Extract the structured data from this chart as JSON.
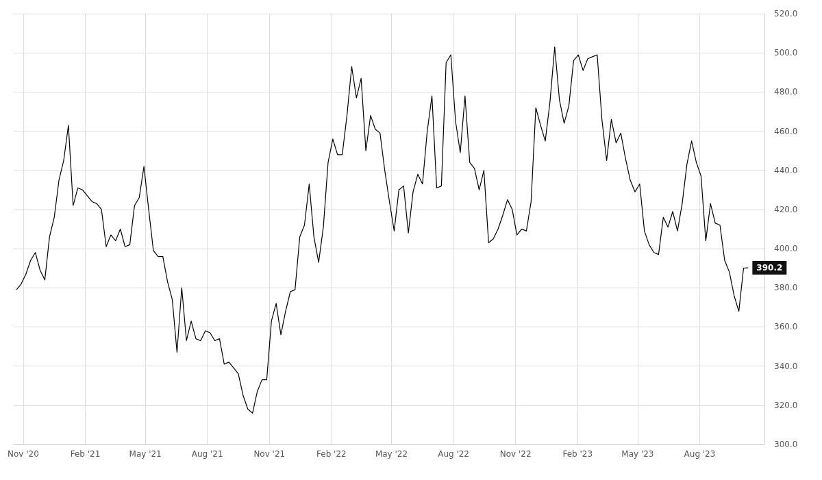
{
  "chart_data": {
    "type": "line",
    "x": [
      "2020-10-22",
      "2020-10-29",
      "2020-11-05",
      "2020-11-12",
      "2020-11-19",
      "2020-11-26",
      "2020-12-03",
      "2020-12-10",
      "2020-12-17",
      "2020-12-24",
      "2020-12-31",
      "2021-01-07",
      "2021-01-14",
      "2021-01-21",
      "2021-01-28",
      "2021-02-04",
      "2021-02-11",
      "2021-02-18",
      "2021-02-25",
      "2021-03-04",
      "2021-03-11",
      "2021-03-18",
      "2021-03-25",
      "2021-04-01",
      "2021-04-08",
      "2021-04-15",
      "2021-04-22",
      "2021-04-29",
      "2021-05-06",
      "2021-05-13",
      "2021-05-20",
      "2021-05-27",
      "2021-06-03",
      "2021-06-10",
      "2021-06-17",
      "2021-06-24",
      "2021-07-01",
      "2021-07-08",
      "2021-07-15",
      "2021-07-22",
      "2021-07-29",
      "2021-08-05",
      "2021-08-12",
      "2021-08-19",
      "2021-08-26",
      "2021-09-02",
      "2021-09-09",
      "2021-09-16",
      "2021-09-23",
      "2021-09-30",
      "2021-10-07",
      "2021-10-14",
      "2021-10-21",
      "2021-10-28",
      "2021-11-04",
      "2021-11-11",
      "2021-11-18",
      "2021-11-25",
      "2021-12-02",
      "2021-12-09",
      "2021-12-16",
      "2021-12-23",
      "2021-12-30",
      "2022-01-06",
      "2022-01-13",
      "2022-01-20",
      "2022-01-27",
      "2022-02-03",
      "2022-02-10",
      "2022-02-17",
      "2022-02-24",
      "2022-03-03",
      "2022-03-10",
      "2022-03-17",
      "2022-03-24",
      "2022-03-31",
      "2022-04-07",
      "2022-04-14",
      "2022-04-21",
      "2022-04-28",
      "2022-05-05",
      "2022-05-12",
      "2022-05-19",
      "2022-05-26",
      "2022-06-02",
      "2022-06-09",
      "2022-06-16",
      "2022-06-23",
      "2022-06-30",
      "2022-07-07",
      "2022-07-14",
      "2022-07-21",
      "2022-07-28",
      "2022-08-04",
      "2022-08-11",
      "2022-08-18",
      "2022-08-25",
      "2022-09-01",
      "2022-09-08",
      "2022-09-15",
      "2022-09-22",
      "2022-09-29",
      "2022-10-06",
      "2022-10-13",
      "2022-10-20",
      "2022-10-27",
      "2022-11-03",
      "2022-11-10",
      "2022-11-17",
      "2022-11-24",
      "2022-12-01",
      "2022-12-08",
      "2022-12-15",
      "2022-12-22",
      "2022-12-29",
      "2023-01-05",
      "2023-01-12",
      "2023-01-19",
      "2023-01-26",
      "2023-02-02",
      "2023-02-09",
      "2023-02-16",
      "2023-02-23",
      "2023-03-02",
      "2023-03-09",
      "2023-03-16",
      "2023-03-23",
      "2023-03-30",
      "2023-04-06",
      "2023-04-13",
      "2023-04-20",
      "2023-04-27",
      "2023-05-04",
      "2023-05-11",
      "2023-05-18",
      "2023-05-25",
      "2023-06-01",
      "2023-06-08",
      "2023-06-15",
      "2023-06-22",
      "2023-06-29",
      "2023-07-06",
      "2023-07-13",
      "2023-07-20",
      "2023-07-27",
      "2023-08-03",
      "2023-08-10",
      "2023-08-17",
      "2023-08-24",
      "2023-08-31",
      "2023-09-07",
      "2023-09-14",
      "2023-09-21",
      "2023-09-28",
      "2023-10-05",
      "2023-10-12"
    ],
    "series": [
      {
        "color": "#000000",
        "values": [
          379,
          382,
          387,
          394,
          398,
          389,
          384,
          406,
          416,
          435,
          445,
          463,
          422,
          431,
          430,
          427,
          424,
          423,
          420,
          401,
          407,
          404,
          410,
          401,
          402,
          422,
          426,
          442,
          420,
          399,
          396,
          396,
          383,
          374,
          347,
          380,
          353,
          363,
          354,
          353,
          358,
          357,
          353,
          354,
          341,
          342,
          339,
          336,
          325,
          318,
          316,
          327,
          333,
          333,
          363,
          372,
          356,
          368,
          378,
          379,
          406,
          412,
          433,
          406,
          393,
          411,
          444,
          456,
          448,
          448,
          468,
          493,
          477,
          487,
          450,
          468,
          461,
          459,
          440,
          424,
          409,
          430,
          432,
          408,
          429,
          438,
          433,
          460,
          478,
          431,
          432,
          495,
          499,
          465,
          449,
          478,
          444,
          441,
          430,
          440,
          403,
          405,
          410,
          417,
          425,
          420,
          407,
          410,
          409,
          424,
          472,
          463,
          455,
          475,
          503,
          476,
          464,
          473,
          496,
          499,
          491,
          497,
          498,
          499,
          466,
          445,
          466,
          454,
          459,
          446,
          435,
          429,
          433,
          409,
          402,
          398,
          397,
          416,
          411,
          419,
          409,
          423,
          443,
          455,
          444,
          437,
          404,
          423,
          413,
          412,
          394,
          388,
          376,
          368,
          390,
          390.2
        ],
        "value_labels": [
          null,
          null,
          null,
          null,
          null,
          null,
          null,
          null,
          null,
          null,
          null,
          null,
          null,
          null,
          null,
          null,
          null,
          null,
          null,
          null,
          null,
          null,
          null,
          null,
          null,
          null,
          null,
          null,
          null,
          null,
          null,
          null,
          null,
          null,
          null,
          null,
          null,
          null,
          null,
          null,
          null,
          null,
          null,
          null,
          null,
          null,
          null,
          null,
          null,
          null,
          null,
          null,
          null,
          null,
          null,
          null,
          null,
          null,
          null,
          null,
          null,
          null,
          null,
          null,
          null,
          null,
          null,
          null,
          null,
          null,
          null,
          null,
          null,
          null,
          null,
          null,
          null,
          null,
          null,
          null,
          null,
          null,
          null,
          null,
          null,
          null,
          null,
          null,
          null,
          null,
          null,
          null,
          null,
          null,
          null,
          null,
          null,
          null,
          null,
          null,
          null,
          null,
          null,
          null,
          null,
          null,
          null,
          null,
          null,
          null,
          null,
          null,
          null,
          null,
          null,
          null,
          null,
          null,
          null,
          null,
          null,
          null,
          null,
          null,
          null,
          null,
          null,
          null,
          null,
          null,
          null,
          null,
          null,
          null,
          null,
          null,
          null,
          null,
          null,
          null,
          null,
          null,
          null,
          null,
          null,
          null,
          null,
          null,
          null,
          null,
          null,
          null,
          null,
          null,
          null,
          "390.2"
        ]
      }
    ],
    "xlim": [
      "2020-10-18",
      "2023-11-05"
    ],
    "xticks": [
      {
        "value": "2020-11-01",
        "label": "Nov '20"
      },
      {
        "value": "2021-02-01",
        "label": "Feb '21"
      },
      {
        "value": "2021-05-01",
        "label": "May '21"
      },
      {
        "value": "2021-08-01",
        "label": "Aug '21"
      },
      {
        "value": "2021-11-01",
        "label": "Nov '21"
      },
      {
        "value": "2022-02-01",
        "label": "Feb '22"
      },
      {
        "value": "2022-05-01",
        "label": "May '22"
      },
      {
        "value": "2022-08-01",
        "label": "Aug '22"
      },
      {
        "value": "2022-11-01",
        "label": "Nov '22"
      },
      {
        "value": "2023-02-01",
        "label": "Feb '23"
      },
      {
        "value": "2023-05-01",
        "label": "May '23"
      },
      {
        "value": "2023-08-01",
        "label": "Aug '23"
      }
    ],
    "ylim": [
      300,
      520
    ],
    "yticks": [
      {
        "value": 300,
        "label": "300.0"
      },
      {
        "value": 320,
        "label": "320.0"
      },
      {
        "value": 340,
        "label": "340.0"
      },
      {
        "value": 360,
        "label": "360.0"
      },
      {
        "value": 380,
        "label": "380.0"
      },
      {
        "value": 400,
        "label": "400.0"
      },
      {
        "value": 420,
        "label": "420.0"
      },
      {
        "value": 440,
        "label": "440.0"
      },
      {
        "value": 460,
        "label": "460.0"
      },
      {
        "value": 480,
        "label": "480.0"
      },
      {
        "value": 500,
        "label": "500.0"
      },
      {
        "value": 520,
        "label": "520.0"
      }
    ],
    "grid": true,
    "marker": "none",
    "line_style": "solid"
  }
}
